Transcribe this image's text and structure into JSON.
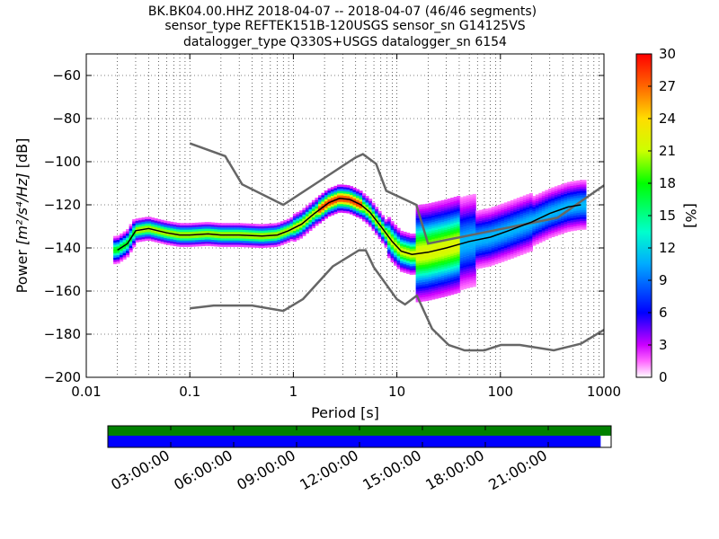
{
  "chart_data": {
    "type": "heatmap",
    "title_lines": [
      "BK.BK04.00.HHZ   2018-04-07 -- 2018-04-07  (46/46 segments)",
      "sensor_type REFTEK151B-120USGS sensor_sn G14125VS",
      "datalogger_type Q330S+USGS datalogger_sn 6154"
    ],
    "xlabel": "Period [s]",
    "ylabel_prefix": "Power ",
    "ylabel_math": "[m²/s⁴/Hz]",
    "ylabel_suffix": " [dB]",
    "x_scale": "log",
    "xlim": [
      0.01,
      1000
    ],
    "ylim": [
      -200,
      -50
    ],
    "x_ticks": [
      {
        "value": 0.01,
        "label": "0.01"
      },
      {
        "value": 0.1,
        "label": "0.1"
      },
      {
        "value": 1,
        "label": "1"
      },
      {
        "value": 10,
        "label": "10"
      },
      {
        "value": 100,
        "label": "100"
      },
      {
        "value": 1000,
        "label": "1000"
      }
    ],
    "y_ticks": [
      {
        "value": -60,
        "label": "−60"
      },
      {
        "value": -80,
        "label": "−80"
      },
      {
        "value": -100,
        "label": "−100"
      },
      {
        "value": -120,
        "label": "−120"
      },
      {
        "value": -140,
        "label": "−140"
      },
      {
        "value": -160,
        "label": "−160"
      },
      {
        "value": -180,
        "label": "−180"
      },
      {
        "value": -200,
        "label": "−200"
      }
    ],
    "colorbar": {
      "label": "[%]",
      "range": [
        0,
        30
      ],
      "ticks": [
        {
          "value": 0,
          "label": "0"
        },
        {
          "value": 3,
          "label": "3"
        },
        {
          "value": 6,
          "label": "6"
        },
        {
          "value": 9,
          "label": "9"
        },
        {
          "value": 12,
          "label": "12"
        },
        {
          "value": 15,
          "label": "15"
        },
        {
          "value": 18,
          "label": "18"
        },
        {
          "value": 21,
          "label": "21"
        },
        {
          "value": 24,
          "label": "24"
        },
        {
          "value": 27,
          "label": "27"
        },
        {
          "value": 30,
          "label": "30"
        }
      ]
    },
    "nhnm": {
      "name": "NHNM",
      "points": [
        [
          0.1,
          -91.5
        ],
        [
          0.22,
          -97.4
        ],
        [
          0.32,
          -110.5
        ],
        [
          0.8,
          -120
        ],
        [
          2.0,
          -107.5
        ],
        [
          4.0,
          -98
        ],
        [
          4.7,
          -96.5
        ],
        [
          6.3,
          -101
        ],
        [
          7.9,
          -113.5
        ],
        [
          15.4,
          -120
        ],
        [
          20,
          -138
        ],
        [
          354.8,
          -126
        ],
        [
          1000,
          -111
        ]
      ]
    },
    "nlnm": {
      "name": "NLNM",
      "points": [
        [
          0.1,
          -168
        ],
        [
          0.17,
          -166.7
        ],
        [
          0.4,
          -166.7
        ],
        [
          0.8,
          -169.2
        ],
        [
          1.24,
          -163.7
        ],
        [
          2.4,
          -148.6
        ],
        [
          4.3,
          -141.1
        ],
        [
          5.0,
          -141.1
        ],
        [
          6.0,
          -149
        ],
        [
          10,
          -163.8
        ],
        [
          12,
          -166.2
        ],
        [
          15.6,
          -162.1
        ],
        [
          21.9,
          -177.5
        ],
        [
          31.6,
          -185
        ],
        [
          45,
          -187.5
        ],
        [
          70,
          -187.5
        ],
        [
          101,
          -185
        ],
        [
          154,
          -185
        ],
        [
          328,
          -187.5
        ],
        [
          600,
          -184.4
        ],
        [
          1000,
          -178
        ]
      ]
    },
    "mode_series": {
      "name": "mode",
      "points": [
        [
          0.02,
          -141
        ],
        [
          0.025,
          -138
        ],
        [
          0.03,
          -132
        ],
        [
          0.04,
          -131
        ],
        [
          0.06,
          -133
        ],
        [
          0.08,
          -134
        ],
        [
          0.1,
          -134
        ],
        [
          0.15,
          -133.5
        ],
        [
          0.2,
          -134
        ],
        [
          0.3,
          -134
        ],
        [
          0.5,
          -134.5
        ],
        [
          0.7,
          -134
        ],
        [
          0.9,
          -132
        ],
        [
          1.2,
          -129
        ],
        [
          1.6,
          -124
        ],
        [
          2.2,
          -119
        ],
        [
          2.8,
          -117
        ],
        [
          3.5,
          -117.5
        ],
        [
          4.5,
          -120
        ],
        [
          5.5,
          -123.5
        ],
        [
          7,
          -130
        ],
        [
          9,
          -137
        ],
        [
          11,
          -141.5
        ],
        [
          14,
          -143
        ],
        [
          20,
          -142
        ],
        [
          30,
          -140
        ],
        [
          50,
          -137
        ],
        [
          80,
          -135
        ],
        [
          120,
          -132
        ],
        [
          200,
          -128
        ],
        [
          300,
          -124
        ],
        [
          450,
          -121
        ],
        [
          600,
          -120
        ]
      ]
    },
    "timeline": {
      "ticks": [
        {
          "hour": 3,
          "label": "03:00:00"
        },
        {
          "hour": 6,
          "label": "06:00:00"
        },
        {
          "hour": 9,
          "label": "09:00:00"
        },
        {
          "hour": 12,
          "label": "12:00:00"
        },
        {
          "hour": 15,
          "label": "15:00:00"
        },
        {
          "hour": 18,
          "label": "18:00:00"
        },
        {
          "hour": 21,
          "label": "21:00:00"
        }
      ],
      "data_coverage_color": "#008000",
      "psd_coverage_color": "#0000ff",
      "data_coverage_hours": [
        0,
        24
      ],
      "psd_coverage_hours": [
        0,
        23.5
      ]
    },
    "colors": {
      "noise_model_line": "#666666",
      "mode_line": "#000000",
      "grid": "#000000"
    }
  }
}
